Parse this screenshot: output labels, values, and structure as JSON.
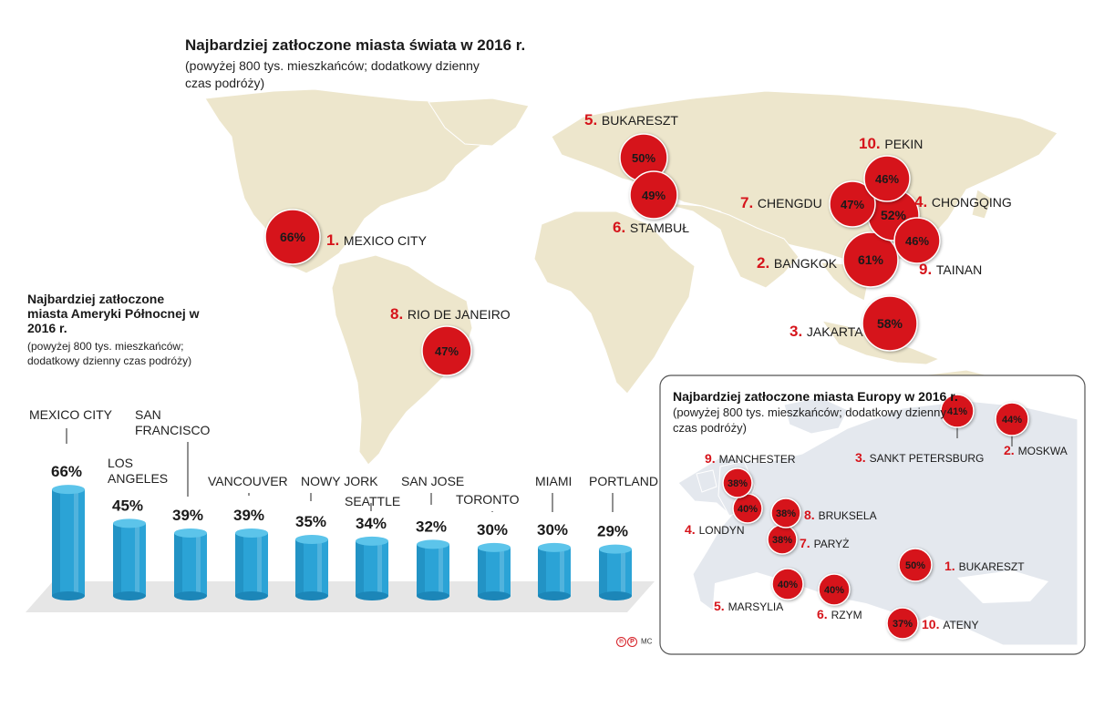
{
  "main": {
    "title": "Najbardziej zatłoczone miasta świata w 2016 r.",
    "subtitle": "(powyżej 800 tys. mieszkańców; dodatkowy dzienny czas podróży)"
  },
  "world_cities": [
    {
      "rank": "1.",
      "name": "MEXICO CITY",
      "value": "66%"
    },
    {
      "rank": "2.",
      "name": "BANGKOK",
      "value": "61%"
    },
    {
      "rank": "3.",
      "name": "JAKARTA",
      "value": "58%"
    },
    {
      "rank": "4.",
      "name": "CHONGQING",
      "value": "52%"
    },
    {
      "rank": "5.",
      "name": "BUKARESZT",
      "value": "50%"
    },
    {
      "rank": "6.",
      "name": "STAMBUŁ",
      "value": "49%"
    },
    {
      "rank": "7.",
      "name": "CHENGDU",
      "value": "47%"
    },
    {
      "rank": "8.",
      "name": "RIO DE JANEIRO",
      "value": "47%"
    },
    {
      "rank": "9.",
      "name": "TAINAN",
      "value": "46%"
    },
    {
      "rank": "10.",
      "name": "PEKIN",
      "value": "46%"
    }
  ],
  "north_america": {
    "title": "Najbardziej zatłoczone miasta Ameryki Północnej w 2016 r.",
    "subtitle": "(powyżej 800 tys. mieszkańców; dodatkowy dzienny czas podróży)"
  },
  "europe": {
    "title": "Najbardziej zatłoczone miasta Europy w 2016 r.",
    "subtitle": "(powyżej 800 tys. mieszkańców; dodatkowy dzienny czas podróży)",
    "cities": [
      {
        "rank": "1.",
        "name": "BUKARESZT",
        "value": "50%"
      },
      {
        "rank": "2.",
        "name": "MOSKWA",
        "value": "44%"
      },
      {
        "rank": "3.",
        "name": "SANKT PETERSBURG",
        "value": "41%"
      },
      {
        "rank": "4.",
        "name": "LONDYN",
        "value": "40%"
      },
      {
        "rank": "5.",
        "name": "MARSYLIA",
        "value": "40%"
      },
      {
        "rank": "6.",
        "name": "RZYM",
        "value": "40%"
      },
      {
        "rank": "7.",
        "name": "PARYŻ",
        "value": "38%"
      },
      {
        "rank": "8.",
        "name": "BRUKSELA",
        "value": "38%"
      },
      {
        "rank": "9.",
        "name": "MANCHESTER",
        "value": "38%"
      },
      {
        "rank": "10.",
        "name": "ATENY",
        "value": "37%"
      }
    ]
  },
  "chart_data": {
    "type": "bar",
    "categories": [
      "MEXICO CITY",
      "LOS ANGELES",
      "SAN FRANCISCO",
      "VANCOUVER",
      "NOWY JORK",
      "SEATTLE",
      "SAN JOSE",
      "TORONTO",
      "MIAMI",
      "PORTLAND"
    ],
    "values": [
      66,
      45,
      39,
      39,
      35,
      34,
      32,
      30,
      30,
      29
    ],
    "value_labels": [
      "66%",
      "45%",
      "39%",
      "39%",
      "35%",
      "34%",
      "32%",
      "30%",
      "30%",
      "29%"
    ],
    "unit": "%",
    "bar_color": "#2ba3d6"
  },
  "credit": "MC",
  "credit_logo": "cp-logo",
  "colors": {
    "land": "#ede6cc",
    "europe_land": "#e4e8ee",
    "marker": "#d6141b",
    "rank": "#d6141b"
  }
}
